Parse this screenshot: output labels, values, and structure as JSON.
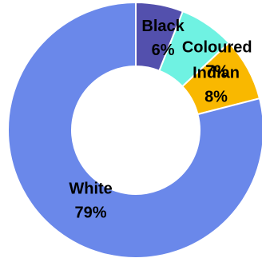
{
  "chart_data": {
    "type": "pie",
    "categories": [
      "Black",
      "Coloured",
      "Indian",
      "White"
    ],
    "values": [
      6,
      7,
      8,
      79
    ],
    "value_labels": [
      "6%",
      "7%",
      "8%",
      "79%"
    ],
    "colors": [
      "#5350ad",
      "#6ff2e2",
      "#f9b800",
      "#6a88ea"
    ],
    "donut": true,
    "title": "",
    "legend": "none"
  }
}
